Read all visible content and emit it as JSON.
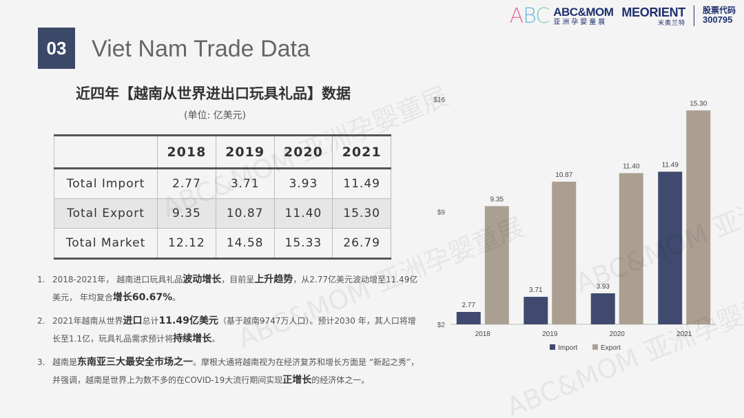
{
  "header": {
    "section_number": "03",
    "title": "Viet Nam Trade Data"
  },
  "logos": {
    "abc_name": "ABC&MOM",
    "abc_sub": "亚洲孕婴童展",
    "meorient_name": "MEORIENT",
    "meorient_sub": "米奥兰特",
    "stock_label": "股票代码",
    "stock_code": "300795"
  },
  "content": {
    "heading": "近四年【越南从世界进出口玩具礼品】数据",
    "unit": "(单位: 亿美元)"
  },
  "table": {
    "columns": [
      "",
      "2018",
      "2019",
      "2020",
      "2021"
    ],
    "rows": [
      {
        "label": "Total Import",
        "values": [
          "2.77",
          "3.71",
          "3.93",
          "11.49"
        ]
      },
      {
        "label": "Total Export",
        "values": [
          "9.35",
          "10.87",
          "11.40",
          "15.30"
        ]
      },
      {
        "label": "Total Market",
        "values": [
          "12.12",
          "14.58",
          "15.33",
          "26.79"
        ]
      }
    ]
  },
  "notes": [
    {
      "num": "1.",
      "parts": [
        {
          "t": "2018-2021年，  越南进口玩具礼品",
          "b": false
        },
        {
          "t": "波动增长",
          "b": true
        },
        {
          "t": "，目前呈",
          "b": false
        },
        {
          "t": "上升趋势",
          "b": true
        },
        {
          "t": "，从2.77亿美元波动增至11.49亿美元，  年均复合",
          "b": false
        },
        {
          "t": "增长60.67%",
          "b": true
        },
        {
          "t": "。",
          "b": false
        }
      ]
    },
    {
      "num": "2.",
      "parts": [
        {
          "t": "2021年越南从世界",
          "b": false
        },
        {
          "t": "进口",
          "b": true
        },
        {
          "t": "总计",
          "b": false
        },
        {
          "t": "11.49亿美元",
          "b": true
        },
        {
          "t": "（基于越南9747万人口）。预计2030 年，其人口将增长至1.1亿，玩具礼品需求预计将",
          "b": false
        },
        {
          "t": "持续增长",
          "b": true
        },
        {
          "t": "。",
          "b": false
        }
      ]
    },
    {
      "num": "3.",
      "parts": [
        {
          "t": "越南是",
          "b": false
        },
        {
          "t": "东南亚三大最安全市场之一",
          "b": true
        },
        {
          "t": "。摩根大通将越南视为在经济复苏和增长方面是 “新起之秀”，并强调，越南是世界上为数不多的在COVID-19大流行期间实现",
          "b": false
        },
        {
          "t": "正增长",
          "b": true
        },
        {
          "t": "的经济体之一。",
          "b": false
        }
      ]
    }
  ],
  "watermarks": [
    "ABC&MOM 亚洲孕婴童展",
    "ABC&MOM 亚洲孕婴童展",
    "ABC&MOM 亚洲孕婴童展",
    "ABC&MOM 亚洲孕婴童展"
  ],
  "chart_data": {
    "type": "bar",
    "categories": [
      "2018",
      "2019",
      "2020",
      "2021"
    ],
    "series": [
      {
        "name": "Import",
        "values": [
          2.77,
          3.71,
          3.93,
          11.49
        ],
        "color": "#3f4a6e"
      },
      {
        "name": "Export",
        "values": [
          9.35,
          10.87,
          11.4,
          15.3
        ],
        "color": "#ab9f92"
      }
    ],
    "y_ticks": [
      "$2",
      "$9",
      "$16"
    ],
    "y_tick_values": [
      2,
      9,
      16
    ],
    "ylim": [
      2,
      16
    ],
    "title": "",
    "xlabel": "",
    "ylabel": "",
    "legend": "bottom",
    "grid": false
  }
}
